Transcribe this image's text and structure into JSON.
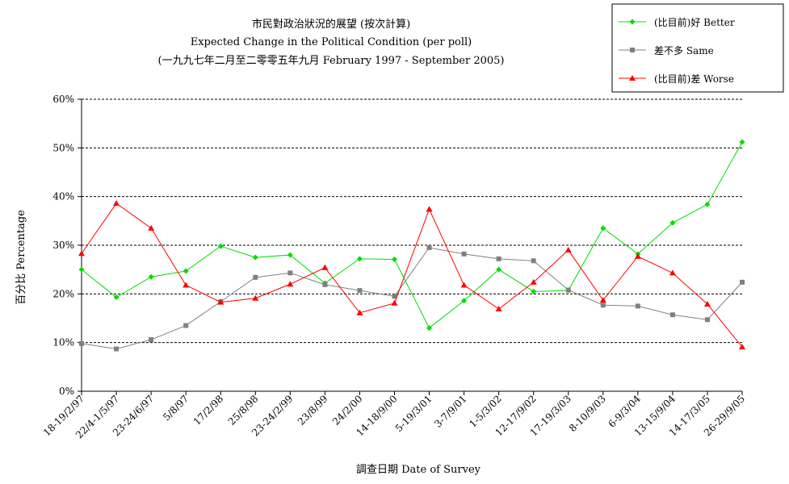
{
  "chart_data": {
    "type": "line",
    "title": "市民對政治狀況的展望 (按次計算)",
    "subtitle": "Expected Change in the Political Condition (per poll)",
    "subtitle2": "(一九九七年二月至二零零五年九月 February 1997 - September 2005)",
    "xlabel": "調查日期 Date of Survey",
    "ylabel": "百分比 Percentage",
    "ylim": [
      0,
      60
    ],
    "yticks": [
      0,
      10,
      20,
      30,
      40,
      50,
      60
    ],
    "ytick_labels": [
      "0%",
      "10%",
      "20%",
      "30%",
      "40%",
      "50%",
      "60%"
    ],
    "grid": true,
    "legend_position": "top-right",
    "categories": [
      "18-19/2/97",
      "22/4-1/5/97",
      "23-24/6/97",
      "5/8/97",
      "17/2/98",
      "25/8/98",
      "23-24/2/99",
      "23/8/99",
      "24/2/00",
      "14-18/9/00",
      "5-19/3/01",
      "3-7/9/01",
      "1-5/3/02",
      "12-17/9/02",
      "17-19/3/03",
      "8-10/9/03",
      "6-9/3/04",
      "13-15/9/04",
      "14-17/3/05",
      "26-29/9/05"
    ],
    "series": [
      {
        "name": "(比目前)好 Better",
        "color": "#00dd00",
        "marker": "diamond",
        "values": [
          25.0,
          19.3,
          23.5,
          24.7,
          29.8,
          27.5,
          28.0,
          22.2,
          27.2,
          27.1,
          13.0,
          18.6,
          25.0,
          20.5,
          20.7,
          33.5,
          28.2,
          34.6,
          38.4,
          51.2
        ]
      },
      {
        "name": "差不多 Same",
        "color": "#808080",
        "marker": "square",
        "values": [
          9.8,
          8.7,
          10.6,
          13.5,
          18.4,
          23.4,
          24.3,
          21.9,
          20.7,
          19.5,
          29.5,
          28.2,
          27.2,
          26.8,
          20.8,
          17.7,
          17.5,
          15.7,
          14.7,
          22.4
        ]
      },
      {
        "name": "(比目前)差 Worse",
        "color": "#ff0000",
        "marker": "triangle",
        "values": [
          28.3,
          38.6,
          33.5,
          21.8,
          18.3,
          19.1,
          22.0,
          25.4,
          16.1,
          18.1,
          37.4,
          21.8,
          16.9,
          22.4,
          29.0,
          18.7,
          27.7,
          24.3,
          17.9,
          9.1
        ]
      }
    ]
  }
}
